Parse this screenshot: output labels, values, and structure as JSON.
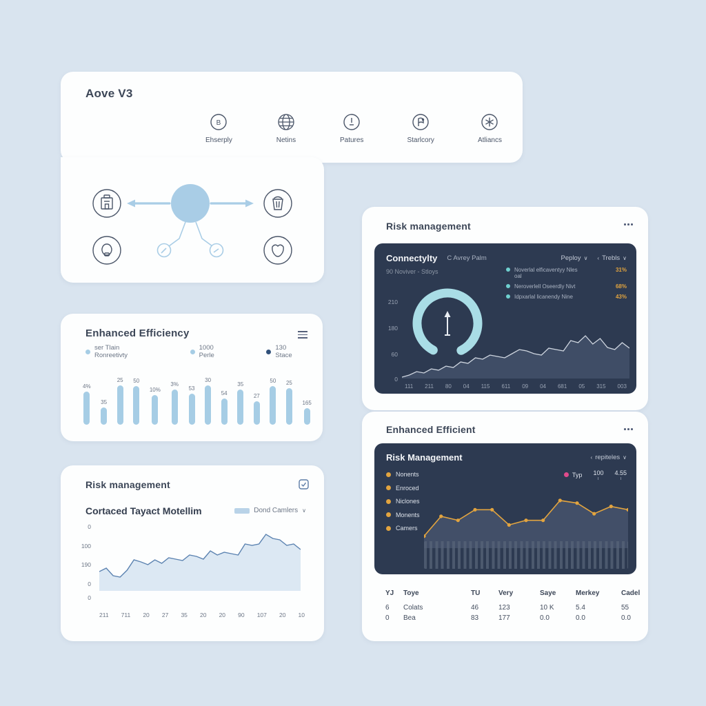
{
  "colors": {
    "background": "#d9e4ef",
    "card": "#fdfefe",
    "panel_dark": "#2d3a51",
    "accent_blue": "#a6cde5",
    "accent_cyan": "#a9dde6",
    "area_fill_light": "#dce8f3",
    "line_blue": "#5b82b0",
    "area_fill_dark": "#3f4d66",
    "line_light": "#cfd6e0",
    "orange": "#e2a43f",
    "teal": "#6fd0cf",
    "pink": "#e04a8b",
    "bar_navy": "#31517a",
    "icon_stroke": "#4a5568"
  },
  "platform_card": {
    "title": "Aove V3",
    "features": [
      {
        "label": "Ehserply",
        "icon": "b-badge-icon"
      },
      {
        "label": "Netins",
        "icon": "globe-icon"
      },
      {
        "label": "Patures",
        "icon": "clock-icon"
      },
      {
        "label": "Starlcory",
        "icon": "flag-icon"
      },
      {
        "label": "Atliancs",
        "icon": "asterisk-icon"
      }
    ]
  },
  "efficiency_card": {
    "title": "Enhanced Efficiency",
    "menu_icon": "hamburger-icon",
    "legend": [
      {
        "label": "ser Tlain Ronreetivty",
        "color": "#a6cde5"
      },
      {
        "label": "1000 Perle",
        "color": "#a6cde5"
      },
      {
        "label": "130 Stace",
        "color": "#31517a"
      }
    ]
  },
  "risk_left_card": {
    "title": "Risk management",
    "corner_icon": "checkbox-icon",
    "subtitle": "Cortaced Tayact Motellim",
    "dropdown_label": "Dond Camlers",
    "dropdown_chevron": "∨"
  },
  "connectivity_card": {
    "title": "Risk management",
    "menu_icon": "ellipsis-icon",
    "panel": {
      "title": "Connectylty",
      "subtitle": "C Avrey Palm",
      "dropdown1": "Peploy",
      "dropdown1_chevron": "∨",
      "dropdown2": "Trebls",
      "dropdown2_chevron_left": "‹",
      "dropdown2_chevron": "∨",
      "range_label": "90 Noviver - Stloys",
      "legend": [
        {
          "label": "Noverlal elficaventyy Nles",
          "sub": "oal",
          "value": "31%"
        },
        {
          "label": "Neroverlell Oseerdly Nivt",
          "sub": "",
          "value": "68%"
        },
        {
          "label": "Idpxarlal licanendy Nine",
          "sub": "",
          "value": "43%"
        }
      ],
      "gauge_icon": "arrow-up-icon"
    }
  },
  "risk_right_card": {
    "title": "Enhanced Efficient",
    "menu_icon": "ellipsis-icon",
    "panel": {
      "title": "Risk Management",
      "dropdown_chevron_left": "‹",
      "dropdown": "repiteles",
      "dropdown_chevron": "∨",
      "legend": [
        "Nonents",
        "Enroced",
        "Niclones",
        "Monents",
        "Camers"
      ],
      "typ": {
        "label": "Typ",
        "value1": "100",
        "value2": "4.55"
      }
    },
    "table": {
      "headers": [
        "YJ",
        "Toye",
        "TU",
        "Very",
        "Saye",
        "Merkey",
        "Cadel"
      ],
      "rows": [
        [
          "6",
          "Colats",
          "46",
          "123",
          "10 K",
          "5.4",
          "55"
        ],
        [
          "0",
          "Bea",
          "83",
          "177",
          "0.0",
          "0.0",
          "0.0"
        ]
      ]
    }
  },
  "chart_data": [
    {
      "name": "efficiency_bars",
      "type": "bar",
      "title": "Enhanced Efficiency",
      "categories": [
        "1",
        "2",
        "3",
        "4",
        "5",
        "6",
        "7",
        "8",
        "9",
        "10",
        "11",
        "12",
        "13",
        "14"
      ],
      "labels": [
        "4%",
        "35",
        "25",
        "50",
        "10%",
        "3%",
        "53",
        "30",
        "54",
        "35",
        "27",
        "50",
        "25",
        "165"
      ],
      "values": [
        78,
        40,
        92,
        90,
        70,
        82,
        72,
        92,
        62,
        82,
        55,
        90,
        86,
        38
      ],
      "ylim": [
        0,
        100
      ],
      "grid": false,
      "legend_position": "top"
    },
    {
      "name": "risk_left_area",
      "type": "area",
      "title": "Cortaced Tayact Motellim",
      "y_ticks": [
        "0",
        "100",
        "190",
        "0",
        "0"
      ],
      "x_ticks": [
        "211",
        "711",
        "20",
        "27",
        "35",
        "20",
        "20",
        "90",
        "107",
        "20",
        "10"
      ],
      "points": [
        28,
        33,
        22,
        20,
        30,
        45,
        42,
        38,
        45,
        40,
        48,
        46,
        44,
        52,
        50,
        46,
        58,
        52,
        56,
        54,
        52,
        68,
        66,
        68,
        82,
        76,
        74,
        66,
        68,
        60
      ],
      "ylim": [
        0,
        100
      ],
      "grid": false
    },
    {
      "name": "connectivity_area",
      "type": "area",
      "title": "Connectylty",
      "y_ticks": [
        "210",
        "180",
        "60",
        "0"
      ],
      "x_ticks": [
        "111",
        "211",
        "80",
        "04",
        "115",
        "611",
        "09",
        "04",
        "681",
        "05",
        "315",
        "003"
      ],
      "points": [
        2,
        5,
        10,
        8,
        14,
        12,
        18,
        16,
        24,
        22,
        30,
        28,
        34,
        32,
        30,
        36,
        42,
        40,
        36,
        34,
        44,
        42,
        40,
        55,
        52,
        62,
        50,
        58,
        45,
        42,
        52,
        44
      ],
      "gauge": {
        "type": "ring",
        "arc_degrees": 305,
        "color": "#a9dde6"
      },
      "ylim": [
        0,
        210
      ],
      "grid": false
    },
    {
      "name": "risk_management_line",
      "type": "line",
      "title": "Risk Management",
      "points": [
        18,
        48,
        42,
        58,
        58,
        35,
        42,
        42,
        72,
        68,
        52,
        63,
        58
      ],
      "stripe_bar_count": 44,
      "ylim": [
        0,
        100
      ],
      "grid": false,
      "line_color": "#e2a43f"
    }
  ]
}
